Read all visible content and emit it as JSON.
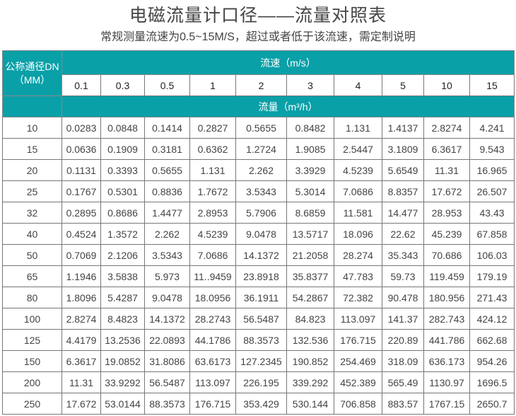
{
  "title": "电磁流量计口径——流量对照表",
  "subtitle": "常规测量流速为0.5~15M/S，超过或者低于该流速，需定制说明",
  "table": {
    "dn_header_line1": "公称通径DN",
    "dn_header_line2": "（MM）",
    "velocity_header": "流速（m/s）",
    "flow_header": "流量（m³/h）",
    "velocities": [
      "0.1",
      "0.3",
      "0.5",
      "1",
      "2",
      "3",
      "4",
      "5",
      "10",
      "15"
    ],
    "rows": [
      {
        "dn": "10",
        "values": [
          "0.0283",
          "0.0848",
          "0.1414",
          "0.2827",
          "0.5655",
          "0.8482",
          "1.131",
          "1.4137",
          "2.8274",
          "4.241"
        ]
      },
      {
        "dn": "15",
        "values": [
          "0.0636",
          "0.1909",
          "0.3181",
          "0.6362",
          "1.2724",
          "1.9085",
          "2.5447",
          "3.1809",
          "6.3617",
          "9.543"
        ]
      },
      {
        "dn": "20",
        "values": [
          "0.1131",
          "0.3393",
          "0.5655",
          "1.131",
          "2.262",
          "3.3929",
          "4.5239",
          "5.6549",
          "11.31",
          "16.965"
        ]
      },
      {
        "dn": "25",
        "values": [
          "0.1767",
          "0.5301",
          "0.8836",
          "1.7672",
          "3.5343",
          "5.3014",
          "7.0686",
          "8.8357",
          "17.672",
          "26.507"
        ]
      },
      {
        "dn": "32",
        "values": [
          "0.2895",
          "0.8686",
          "1.4477",
          "2.8953",
          "5.7906",
          "8.6859",
          "11.581",
          "14.477",
          "28.953",
          "43.43"
        ]
      },
      {
        "dn": "40",
        "values": [
          "0.4524",
          "1.3572",
          "2.262",
          "4.5239",
          "9.0478",
          "13.5717",
          "18.096",
          "22.62",
          "45.239",
          "67.858"
        ]
      },
      {
        "dn": "50",
        "values": [
          "0.7069",
          "2.1206",
          "3.5343",
          "7.0686",
          "14.1372",
          "21.2058",
          "28.274",
          "35.343",
          "70.686",
          "106.03"
        ]
      },
      {
        "dn": "65",
        "values": [
          "1.1946",
          "3.5838",
          "5.973",
          "11..9459",
          "23.8918",
          "35.8377",
          "47.783",
          "59.73",
          "119.459",
          "179.19"
        ]
      },
      {
        "dn": "80",
        "values": [
          "1.8096",
          "5.4287",
          "9.0478",
          "18.0956",
          "36.1911",
          "54.2867",
          "72.382",
          "90.478",
          "180.956",
          "271.43"
        ]
      },
      {
        "dn": "100",
        "values": [
          "2.8274",
          "8.4823",
          "14.1372",
          "28.2743",
          "56.5487",
          "84.823",
          "113.097",
          "141.37",
          "282.743",
          "424.12"
        ]
      },
      {
        "dn": "125",
        "values": [
          "4.4179",
          "13.2536",
          "22.0893",
          "44.1786",
          "88.3573",
          "132.536",
          "176.715",
          "220.89",
          "441.786",
          "662.68"
        ]
      },
      {
        "dn": "150",
        "values": [
          "6.3617",
          "19.0852",
          "31.8086",
          "63.6173",
          "127.2345",
          "190.852",
          "254.469",
          "318.09",
          "636.173",
          "954.26"
        ]
      },
      {
        "dn": "200",
        "values": [
          "11.31",
          "33.9292",
          "56.5487",
          "113.097",
          "226.195",
          "339.292",
          "452.389",
          "565.49",
          "1130.97",
          "1696.5"
        ]
      },
      {
        "dn": "250",
        "values": [
          "17.672",
          "53.0144",
          "88.3573",
          "176.715",
          "353.429",
          "530.144",
          "706.858",
          "883.57",
          "1767.15",
          "2650.7"
        ]
      }
    ]
  },
  "colors": {
    "header_teal": "#0aa0a8"
  }
}
